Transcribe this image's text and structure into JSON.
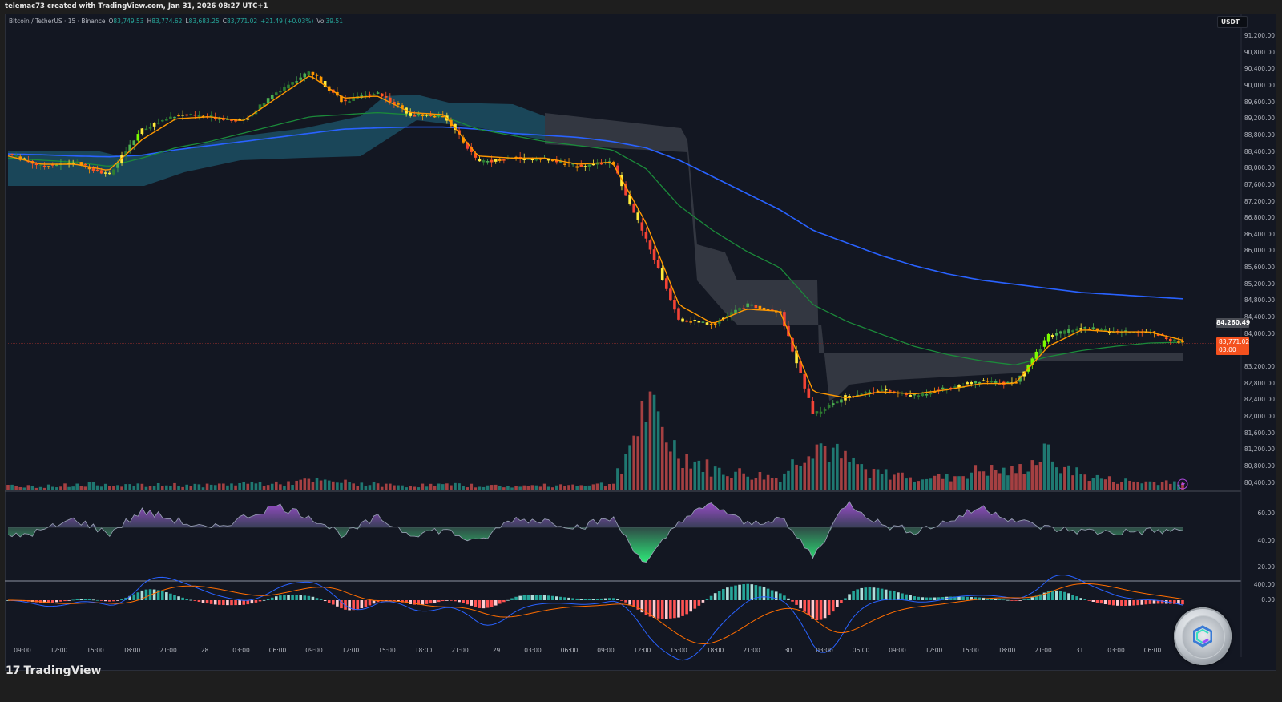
{
  "header": {
    "credit": "telemac73 created with TradingView.com, Jan 31, 2026 08:27 UTC+1"
  },
  "legend": {
    "symbol": "Bitcoin / TetherUS · 15 · Binance",
    "open_label": "O",
    "open": "83,749.53",
    "high_label": "H",
    "high": "83,774.62",
    "low_label": "L",
    "low": "83,683.25",
    "close_label": "C",
    "close": "83,771.02",
    "change": "+21.49 (+0.03%)",
    "vol_label": "Vol",
    "vol": "39.51"
  },
  "price_axis": {
    "currency": "USDT",
    "ticks": [
      "91,200.00",
      "90,800.00",
      "90,400.00",
      "90,000.00",
      "89,600.00",
      "89,200.00",
      "88,800.00",
      "88,400.00",
      "88,000.00",
      "87,600.00",
      "87,200.00",
      "86,800.00",
      "86,400.00",
      "86,000.00",
      "85,600.00",
      "85,200.00",
      "84,800.00",
      "84,400.00",
      "84,000.00",
      "83,200.00",
      "82,800.00",
      "82,400.00",
      "82,000.00",
      "81,600.00",
      "81,200.00",
      "80,800.00",
      "80,400.00"
    ],
    "marker_price": "84,260.49",
    "last_price": "83,771.02",
    "countdown": "03:00"
  },
  "rsi_axis": {
    "ticks": [
      "60.00",
      "40.00",
      "20.00"
    ]
  },
  "macd_axis": {
    "ticks": [
      "400.00",
      "0.00"
    ]
  },
  "time_axis": {
    "ticks": [
      "09:00",
      "12:00",
      "15:00",
      "18:00",
      "21:00",
      "28",
      "03:00",
      "06:00",
      "09:00",
      "12:00",
      "15:00",
      "18:00",
      "21:00",
      "29",
      "03:00",
      "06:00",
      "09:00",
      "12:00",
      "15:00",
      "18:00",
      "21:00",
      "30",
      "03:00",
      "06:00",
      "09:00",
      "12:00",
      "15:00",
      "18:00",
      "21:00",
      "31",
      "03:00",
      "06:00"
    ]
  },
  "footer": {
    "brand": "TradingView",
    "brand_mark": "17"
  },
  "colors": {
    "background": "#131722",
    "up": "#26a69a",
    "down": "#ef5350",
    "candle_bright_green": "#4caf50",
    "candle_lime": "#7cfc00",
    "candle_yellow": "#ffeb3b",
    "candle_orange": "#ff9800",
    "candle_red": "#f44336",
    "ema_fast": "#ff9800",
    "ema_mid": "#1b8a3a",
    "ema_slow": "#2962ff",
    "cloud_bull": "#1c4f63",
    "cloud_bear": "#3a3d47",
    "rsi_purple": "#9c4dcc",
    "rsi_green": "#2ee878",
    "macd_line": "#2962ff",
    "signal_line": "#ff6d00",
    "last_price": "#f4511e"
  },
  "chart_data": {
    "type": "candlestick",
    "title": "Bitcoin / TetherUS · 15 · Binance",
    "xlabel": "",
    "ylabel": "USDT",
    "ylim": [
      80200,
      91400
    ],
    "x": [
      "27 09:00",
      "27 12:00",
      "27 15:00",
      "27 18:00",
      "27 21:00",
      "28 00:00",
      "28 03:00",
      "28 06:00",
      "28 09:00",
      "28 12:00",
      "28 15:00",
      "28 18:00",
      "28 21:00",
      "29 00:00",
      "29 03:00",
      "29 06:00",
      "29 09:00",
      "29 12:00",
      "29 15:00",
      "29 16:00",
      "29 18:00",
      "29 21:00",
      "30 00:00",
      "30 02:00",
      "30 03:00",
      "30 06:00",
      "30 09:00",
      "30 12:00",
      "30 15:00",
      "30 18:00",
      "30 20:00",
      "30 21:00",
      "31 00:00",
      "31 03:00",
      "31 06:00",
      "31 08:00"
    ],
    "series": [
      {
        "name": "Close (approx)",
        "values": [
          88350,
          88050,
          88150,
          87850,
          88950,
          89300,
          89250,
          89150,
          89850,
          90350,
          89600,
          89850,
          89300,
          89280,
          88150,
          88250,
          88220,
          88050,
          88150,
          86300,
          84350,
          84250,
          84700,
          84550,
          82050,
          82500,
          82650,
          82500,
          82700,
          82850,
          82800,
          83950,
          84150,
          84050,
          84050,
          83771
        ]
      },
      {
        "name": "EMA fast (orange)",
        "values": [
          88300,
          88100,
          88100,
          87950,
          88700,
          89200,
          89250,
          89150,
          89700,
          90250,
          89700,
          89750,
          89350,
          89300,
          88300,
          88250,
          88250,
          88100,
          88150,
          86700,
          84700,
          84250,
          84600,
          84550,
          82600,
          82450,
          82600,
          82550,
          82650,
          82800,
          82800,
          83700,
          84100,
          84050,
          84050,
          83850
        ]
      },
      {
        "name": "EMA mid (green)",
        "values": [
          88250,
          88200,
          88150,
          88050,
          88250,
          88500,
          88650,
          88850,
          89050,
          89250,
          89300,
          89350,
          89300,
          89250,
          88950,
          88800,
          88650,
          88550,
          88450,
          88000,
          87100,
          86500,
          86000,
          85600,
          84700,
          84300,
          84000,
          83700,
          83500,
          83350,
          83250,
          83450,
          83600,
          83700,
          83780,
          83800
        ]
      },
      {
        "name": "EMA slow (blue)",
        "values": [
          88350,
          88330,
          88300,
          88280,
          88320,
          88450,
          88550,
          88650,
          88750,
          88850,
          88950,
          88980,
          89000,
          89000,
          88950,
          88850,
          88800,
          88750,
          88650,
          88500,
          88200,
          87800,
          87400,
          87000,
          86500,
          86200,
          85900,
          85650,
          85450,
          85300,
          85200,
          85100,
          85000,
          84950,
          84900,
          84850
        ]
      },
      {
        "name": "Volume (relative)",
        "values": [
          6,
          5,
          7,
          8,
          6,
          7,
          6,
          9,
          8,
          12,
          10,
          7,
          6,
          7,
          6,
          5,
          6,
          7,
          8,
          100,
          45,
          25,
          20,
          15,
          60,
          35,
          20,
          18,
          15,
          25,
          22,
          45,
          18,
          12,
          10,
          12
        ]
      },
      {
        "name": "RSI",
        "values": [
          42,
          47,
          56,
          45,
          62,
          55,
          48,
          57,
          66,
          58,
          44,
          57,
          45,
          48,
          38,
          56,
          55,
          50,
          57,
          22,
          55,
          67,
          52,
          57,
          28,
          69,
          52,
          47,
          54,
          65,
          55,
          49,
          47,
          46,
          47,
          47
        ]
      }
    ],
    "annotations": [
      "Last price 83,771.02",
      "Marker 84,260.49",
      "Countdown 03:00"
    ],
    "panes": [
      "Price + EMAs + cloud",
      "Volume",
      "RSI (20-60 scale)",
      "MACD (0-400 scale)"
    ]
  }
}
